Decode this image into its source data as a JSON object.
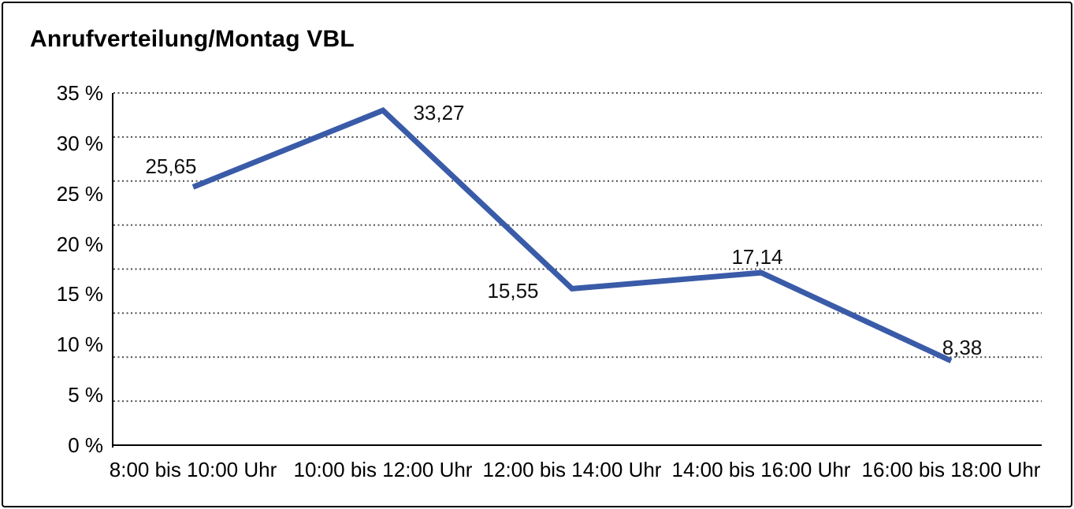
{
  "title": "Anrufverteilung/Montag VBL",
  "chart_data": {
    "type": "line",
    "title": "Anrufverteilung/Montag VBL",
    "categories": [
      "8:00 bis 10:00 Uhr",
      "10:00 bis 12:00 Uhr",
      "12:00 bis 14:00 Uhr",
      "14:00 bis 16:00 Uhr",
      "16:00 bis 18:00 Uhr"
    ],
    "values": [
      25.65,
      33.27,
      15.55,
      17.14,
      8.38
    ],
    "point_labels": [
      "25,65",
      "33,27",
      "15,55",
      "17,14",
      "8,38"
    ],
    "y_tick_values": [
      35,
      30,
      25,
      20,
      15,
      10,
      5,
      0
    ],
    "y_tick_labels": [
      "35 %",
      "30 %",
      "25 %",
      "20 %",
      "15 %",
      "10 %",
      "5 %",
      "0 %"
    ],
    "ylim": [
      0,
      35
    ],
    "xlabel": "",
    "ylabel": "",
    "legend": "none",
    "grid": "horizontal-dotted",
    "line_color": "#3a5ba8",
    "grid_color": "#4d4d4d",
    "axis_color": "#000000",
    "decimal_separator": ","
  }
}
